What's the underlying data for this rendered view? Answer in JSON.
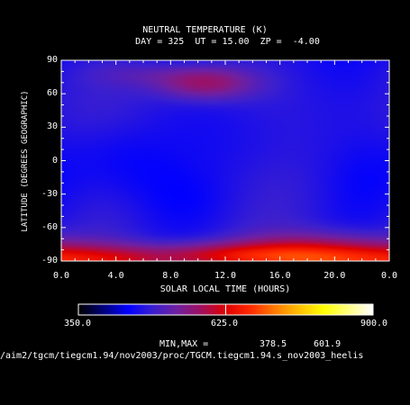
{
  "chart_data": {
    "type": "heatmap",
    "title": "NEUTRAL TEMPERATURE (K)",
    "subtitle": "DAY = 325  UT = 15.00  ZP =  -4.00",
    "xlabel": "SOLAR LOCAL TIME (HOURS)",
    "ylabel": "LATITUDE (DEGREES GEOGRAPHIC)",
    "xlim": [
      0,
      24
    ],
    "ylim": [
      -90,
      90
    ],
    "x_ticks": [
      "0.0",
      "4.0",
      "8.0",
      "12.0",
      "16.0",
      "20.0",
      "0.0"
    ],
    "y_ticks": [
      "90",
      "60",
      "30",
      "0",
      "-30",
      "-60",
      "-90"
    ],
    "colorbar": {
      "min": 350.0,
      "max": 900.0,
      "tick_labels": [
        "350.0",
        "625.0",
        "900.0"
      ],
      "colors": [
        "#000000",
        "#00007a",
        "#0000ff",
        "#3a1fd0",
        "#7020a0",
        "#a01060",
        "#e00000",
        "#ff2a00",
        "#ff7a00",
        "#ffc000",
        "#ffff00",
        "#ffff80",
        "#ffffff"
      ]
    },
    "minmax_label": "MIN,MAX =",
    "min": "378.5",
    "max": "601.9",
    "blobs": [
      {
        "x": 4.0,
        "y": 0,
        "sx": 3.2,
        "sy": 28,
        "v": -52
      },
      {
        "x": 14.0,
        "y": 15,
        "sx": 3.5,
        "sy": 35,
        "v": -38
      },
      {
        "x": 22.5,
        "y": -20,
        "sx": 2.5,
        "sy": 30,
        "v": -28
      },
      {
        "x": 9.0,
        "y": -35,
        "sx": 3,
        "sy": 20,
        "v": -22
      },
      {
        "x": 10.5,
        "y": 70,
        "sx": 2.6,
        "sy": 11,
        "v": 110
      },
      {
        "x": 6.0,
        "y": 78,
        "sx": 3,
        "sy": 8,
        "v": 30
      },
      {
        "x": 19.0,
        "y": -88,
        "sx": 4.5,
        "sy": 14,
        "v": 180
      },
      {
        "x": 3.0,
        "y": -90,
        "sx": 5,
        "sy": 10,
        "v": 120
      },
      {
        "x": 12.0,
        "y": -85,
        "sx": 4,
        "sy": 8,
        "v": 100
      }
    ]
  },
  "footer": {
    "path": "/aim2/tgcm/tiegcm1.94/nov2003/proc/TGCM.tiegcm1.94.s_nov2003_heelis"
  }
}
